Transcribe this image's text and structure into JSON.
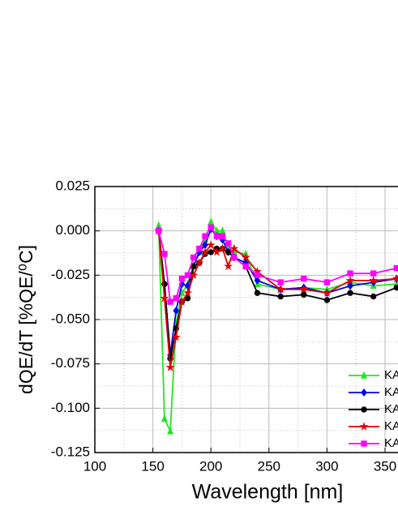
{
  "chart_data": {
    "type": "line",
    "xlabel": "Wavelength [nm]",
    "ylabel": "dQE/dT [%QE/⁰C]",
    "x": [
      155,
      160,
      165,
      170,
      175,
      180,
      185,
      190,
      195,
      200,
      205,
      210,
      215,
      220,
      230,
      240,
      260,
      280,
      300,
      320,
      340,
      360
    ],
    "series": [
      {
        "name": "KA",
        "color": "#22e522",
        "marker": "triangle",
        "values": [
          0.003,
          -0.106,
          -0.113,
          -0.052,
          -0.035,
          -0.03,
          -0.02,
          -0.012,
          -0.005,
          0.005,
          0.0,
          0.0,
          -0.01,
          -0.012,
          -0.013,
          -0.03,
          -0.033,
          -0.032,
          -0.033,
          -0.029,
          -0.031,
          -0.03
        ]
      },
      {
        "name": "KA",
        "color": "#0000ee",
        "marker": "diamond",
        "values": [
          0,
          -0.03,
          -0.07,
          -0.045,
          -0.03,
          -0.031,
          -0.02,
          -0.012,
          -0.008,
          0.001,
          -0.003,
          -0.005,
          -0.012,
          -0.015,
          -0.018,
          -0.028,
          -0.033,
          -0.032,
          -0.035,
          -0.031,
          -0.029,
          -0.027
        ]
      },
      {
        "name": "KA",
        "color": "#000000",
        "marker": "circle",
        "values": [
          0,
          -0.03,
          -0.072,
          -0.055,
          -0.04,
          -0.038,
          -0.02,
          -0.018,
          -0.013,
          -0.012,
          -0.01,
          -0.01,
          -0.012,
          -0.015,
          -0.02,
          -0.035,
          -0.037,
          -0.036,
          -0.039,
          -0.035,
          -0.037,
          -0.032
        ]
      },
      {
        "name": "KA",
        "color": "#e00000",
        "marker": "star",
        "values": [
          0,
          -0.038,
          -0.077,
          -0.06,
          -0.04,
          -0.035,
          -0.025,
          -0.018,
          -0.012,
          -0.008,
          -0.012,
          -0.01,
          -0.02,
          -0.01,
          -0.015,
          -0.023,
          -0.033,
          -0.033,
          -0.035,
          -0.028,
          -0.028,
          -0.027
        ]
      },
      {
        "name": "KA",
        "color": "#ff00ff",
        "marker": "square",
        "values": [
          0,
          -0.013,
          -0.04,
          -0.038,
          -0.027,
          -0.025,
          -0.015,
          -0.01,
          -0.003,
          0.002,
          -0.003,
          -0.003,
          -0.007,
          -0.015,
          -0.02,
          -0.025,
          -0.029,
          -0.027,
          -0.029,
          -0.024,
          -0.024,
          -0.021
        ]
      }
    ],
    "xlim": [
      100,
      400
    ],
    "xticks": [
      100,
      150,
      200,
      250,
      300,
      350
    ],
    "ylim": [
      -0.125,
      0.025
    ],
    "yticks": [
      {
        "value": 0.025,
        "label": "0.025"
      },
      {
        "value": 0,
        "label": "0.000"
      },
      {
        "value": -0.025,
        "label": "-0.025"
      },
      {
        "value": -0.05,
        "label": "-0.050"
      },
      {
        "value": -0.075,
        "label": "-0.075"
      },
      {
        "value": -0.1,
        "label": "-0.100"
      },
      {
        "value": -0.125,
        "label": "-0.125"
      }
    ],
    "grid": true,
    "legend": "lower right"
  }
}
